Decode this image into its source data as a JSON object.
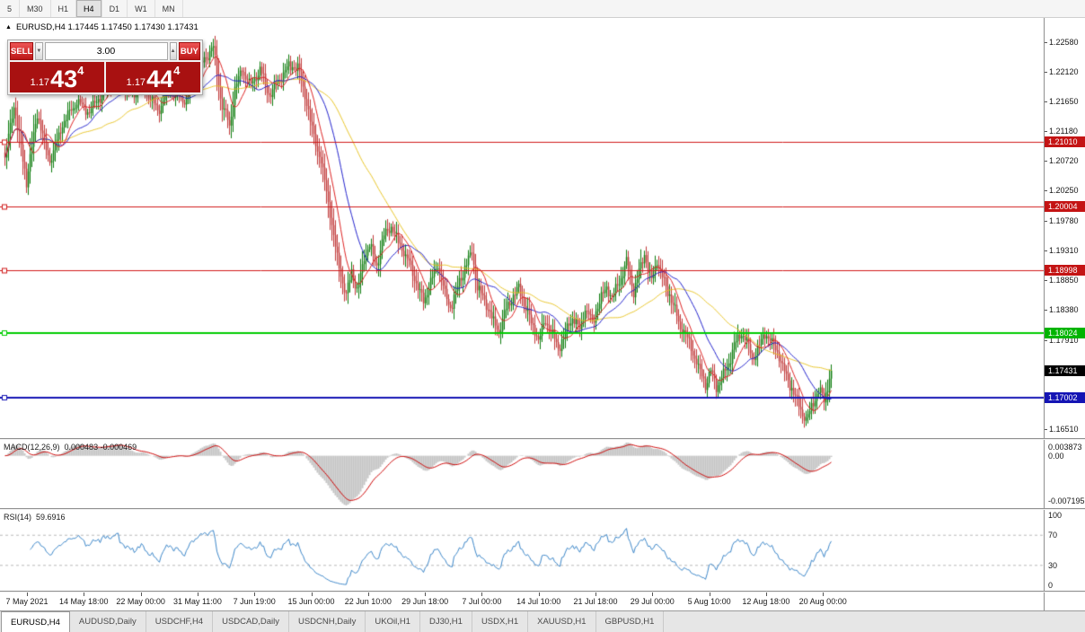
{
  "toolbar": {
    "timeframes": [
      {
        "label": "5",
        "active": false
      },
      {
        "label": "M30",
        "active": false
      },
      {
        "label": "H1",
        "active": false
      },
      {
        "label": "H4",
        "active": true
      },
      {
        "label": "D1",
        "active": false
      },
      {
        "label": "W1",
        "active": false
      },
      {
        "label": "MN",
        "active": false
      }
    ]
  },
  "chart_header": {
    "collapse_icon": "▲",
    "text": "EURUSD,H4 1.17445 1.17450 1.17430 1.17431"
  },
  "trade_panel": {
    "sell_label": "SELL",
    "buy_label": "BUY",
    "volume": "3.00",
    "stepper_down_icon": "▼",
    "stepper_up_icon": "▲",
    "sell_price": {
      "prefix": "1.17",
      "big": "43",
      "sup": "4"
    },
    "buy_price": {
      "prefix": "1.17",
      "big": "44",
      "sup": "4"
    }
  },
  "indicators": {
    "macd": {
      "label": "MACD(12,26,9)",
      "values": "0.000483 -0.000469",
      "scale_top": "0.003873",
      "scale_zero": "0.00",
      "scale_bottom": "-0.007195"
    },
    "rsi": {
      "label": "RSI(14)",
      "value": "59.6916",
      "levels": [
        100,
        70,
        30,
        0
      ]
    }
  },
  "price_axis": {
    "range_top": 1.2296,
    "range_bottom": 1.1637,
    "ticks": [
      1.2258,
      1.2212,
      1.2165,
      1.2118,
      1.2072,
      1.2025,
      1.1978,
      1.1931,
      1.1885,
      1.1838,
      1.1791,
      1.1651
    ],
    "badges": [
      {
        "value": 1.2101,
        "label": "1.21010",
        "bg": "#c41414",
        "fg": "#ffffff"
      },
      {
        "value": 1.20004,
        "label": "1.20004",
        "bg": "#c41414",
        "fg": "#ffffff"
      },
      {
        "value": 1.18998,
        "label": "1.18998",
        "bg": "#c41414",
        "fg": "#ffffff"
      },
      {
        "value": 1.18024,
        "label": "1.18024",
        "bg": "#00b400",
        "fg": "#ffffff"
      },
      {
        "value": 1.17431,
        "label": "1.17431",
        "bg": "#000000",
        "fg": "#ffffff"
      },
      {
        "value": 1.17002,
        "label": "1.17002",
        "bg": "#1414b4",
        "fg": "#ffffff"
      }
    ]
  },
  "time_axis": {
    "labels": [
      "7 May 2021",
      "14 May 18:00",
      "22 May 00:00",
      "31 May 11:00",
      "7 Jun 19:00",
      "15 Jun 00:00",
      "22 Jun 10:00",
      "29 Jun 18:00",
      "7 Jul 00:00",
      "14 Jul 10:00",
      "21 Jul 18:00",
      "29 Jul 00:00",
      "5 Aug 10:00",
      "12 Aug 18:00",
      "20 Aug 00:00"
    ]
  },
  "tabs": [
    {
      "label": "EURUSD,H4",
      "active": true
    },
    {
      "label": "AUDUSD,Daily",
      "active": false
    },
    {
      "label": "USDCHF,H4",
      "active": false
    },
    {
      "label": "USDCAD,Daily",
      "active": false
    },
    {
      "label": "USDCNH,Daily",
      "active": false
    },
    {
      "label": "UKOil,H1",
      "active": false
    },
    {
      "label": "DJ30,H1",
      "active": false
    },
    {
      "label": "USDX,H1",
      "active": false
    },
    {
      "label": "XAUUSD,H1",
      "active": false
    },
    {
      "label": "GBPUSD,H1",
      "active": false
    }
  ],
  "chart_data": {
    "type": "candlestick",
    "symbol": "EURUSD",
    "timeframe": "H4",
    "current_bar": {
      "open": 1.17445,
      "high": 1.1745,
      "low": 1.1743,
      "close": 1.17431
    },
    "bar_count": 461,
    "bull_color": "#0f7d0f",
    "bear_color": "#c13a3a",
    "macd_histogram_color": "#c4c4c4",
    "macd_signal_color": "#cc0000",
    "rsi_color": "#3c86c8",
    "rsi_level_line_color": "#b8b8b8",
    "horizontal_lines": [
      {
        "price": 1.2101,
        "color": "#d01818",
        "width": 1
      },
      {
        "price": 1.20004,
        "color": "#d01818",
        "width": 1
      },
      {
        "price": 1.18998,
        "color": "#d01818",
        "width": 1
      },
      {
        "price": 1.18024,
        "color": "#00cc00",
        "width": 2
      },
      {
        "price": 1.17002,
        "color": "#1414b4",
        "width": 2
      }
    ],
    "moving_averages": [
      {
        "period": 55,
        "color": "#e8c52a"
      },
      {
        "period": 24,
        "color": "#2222cc"
      },
      {
        "period": 10,
        "color": "#dd2222"
      }
    ],
    "price_waypoints": [
      [
        0,
        1.2075
      ],
      [
        5,
        1.216
      ],
      [
        12,
        1.204
      ],
      [
        18,
        1.2145
      ],
      [
        25,
        1.207
      ],
      [
        32,
        1.213
      ],
      [
        40,
        1.2165
      ],
      [
        47,
        1.215
      ],
      [
        55,
        1.218
      ],
      [
        62,
        1.2205
      ],
      [
        70,
        1.2175
      ],
      [
        77,
        1.219
      ],
      [
        85,
        1.215
      ],
      [
        92,
        1.2185
      ],
      [
        100,
        1.2165
      ],
      [
        107,
        1.2215
      ],
      [
        116,
        1.225
      ],
      [
        120,
        1.217
      ],
      [
        125,
        1.2125
      ],
      [
        128,
        1.2185
      ],
      [
        132,
        1.2215
      ],
      [
        137,
        1.219
      ],
      [
        142,
        1.2215
      ],
      [
        147,
        1.2175
      ],
      [
        152,
        1.2195
      ],
      [
        158,
        1.222
      ],
      [
        163,
        1.222
      ],
      [
        167,
        1.2175
      ],
      [
        171,
        1.212
      ],
      [
        175,
        1.208
      ],
      [
        178,
        1.204
      ],
      [
        181,
        1.199
      ],
      [
        184,
        1.1935
      ],
      [
        187,
        1.1895
      ],
      [
        190,
        1.1858
      ],
      [
        193,
        1.19
      ],
      [
        196,
        1.1868
      ],
      [
        200,
        1.192
      ],
      [
        203,
        1.194
      ],
      [
        207,
        1.1907
      ],
      [
        211,
        1.1955
      ],
      [
        215,
        1.197
      ],
      [
        218,
        1.195
      ],
      [
        222,
        1.1928
      ],
      [
        226,
        1.1905
      ],
      [
        230,
        1.1872
      ],
      [
        233,
        1.1852
      ],
      [
        237,
        1.1882
      ],
      [
        241,
        1.191
      ],
      [
        245,
        1.1862
      ],
      [
        248,
        1.1842
      ],
      [
        252,
        1.1872
      ],
      [
        256,
        1.1905
      ],
      [
        260,
        1.193
      ],
      [
        263,
        1.1872
      ],
      [
        267,
        1.1852
      ],
      [
        271,
        1.1827
      ],
      [
        275,
        1.1802
      ],
      [
        278,
        1.1832
      ],
      [
        282,
        1.1857
      ],
      [
        286,
        1.1872
      ],
      [
        290,
        1.1842
      ],
      [
        293,
        1.1817
      ],
      [
        297,
        1.1792
      ],
      [
        301,
        1.1822
      ],
      [
        305,
        1.1797
      ],
      [
        308,
        1.1777
      ],
      [
        312,
        1.1802
      ],
      [
        316,
        1.1827
      ],
      [
        320,
        1.1807
      ],
      [
        323,
        1.1842
      ],
      [
        327,
        1.1817
      ],
      [
        331,
        1.1852
      ],
      [
        335,
        1.1872
      ],
      [
        338,
        1.1857
      ],
      [
        342,
        1.1882
      ],
      [
        346,
        1.1912
      ],
      [
        350,
        1.1867
      ],
      [
        353,
        1.1897
      ],
      [
        356,
        1.1927
      ],
      [
        360,
        1.1882
      ],
      [
        363,
        1.1917
      ],
      [
        366,
        1.1887
      ],
      [
        370,
        1.1862
      ],
      [
        373,
        1.1837
      ],
      [
        376,
        1.1812
      ],
      [
        380,
        1.1792
      ],
      [
        383,
        1.1772
      ],
      [
        386,
        1.1747
      ],
      [
        390,
        1.1722
      ],
      [
        393,
        1.1742
      ],
      [
        396,
        1.1717
      ],
      [
        400,
        1.1737
      ],
      [
        403,
        1.1757
      ],
      [
        406,
        1.1782
      ],
      [
        410,
        1.1802
      ],
      [
        413,
        1.1787
      ],
      [
        416,
        1.1762
      ],
      [
        420,
        1.1782
      ],
      [
        423,
        1.1802
      ],
      [
        426,
        1.1792
      ],
      [
        430,
        1.1772
      ],
      [
        433,
        1.1747
      ],
      [
        436,
        1.1727
      ],
      [
        440,
        1.1702
      ],
      [
        443,
        1.1682
      ],
      [
        446,
        1.1666
      ],
      [
        450,
        1.1692
      ],
      [
        453,
        1.1712
      ],
      [
        456,
        1.1697
      ],
      [
        460,
        1.17431
      ]
    ]
  }
}
